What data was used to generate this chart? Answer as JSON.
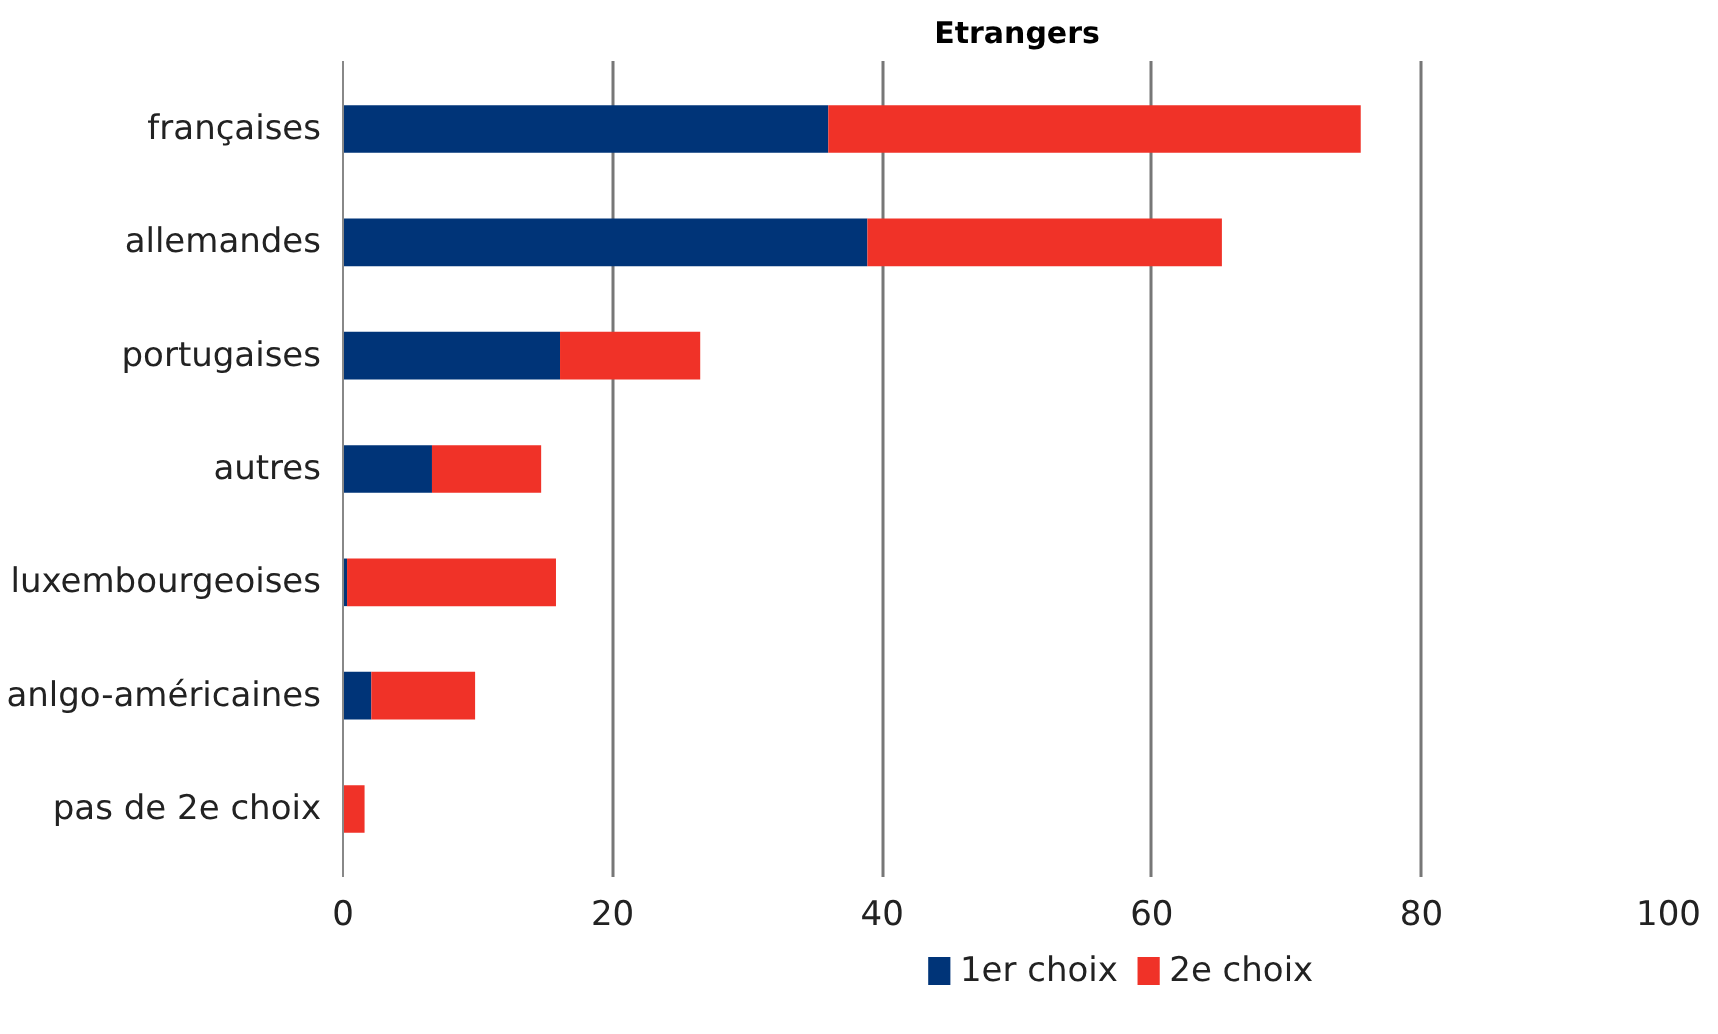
{
  "chart_data": {
    "type": "bar",
    "title": "Etrangers",
    "orientation": "horizontal",
    "stacked": true,
    "categories": [
      "françaises",
      "allemandes",
      "portugaises",
      "autres",
      "luxembourgeoises",
      "anlgo-américaines",
      "pas de 2e choix"
    ],
    "series": [
      {
        "name": "1er choix",
        "color": "#003478",
        "values": [
          36.0,
          38.9,
          16.1,
          6.6,
          0.3,
          2.1,
          0
        ]
      },
      {
        "name": "2e choix",
        "color": "#f03228",
        "values": [
          39.5,
          26.3,
          10.4,
          8.1,
          15.5,
          7.7,
          1.6
        ]
      }
    ],
    "xlim": [
      0,
      100
    ],
    "xticks": [
      0,
      20,
      40,
      60,
      80,
      100
    ],
    "grid": "x",
    "legend": "bottom"
  }
}
